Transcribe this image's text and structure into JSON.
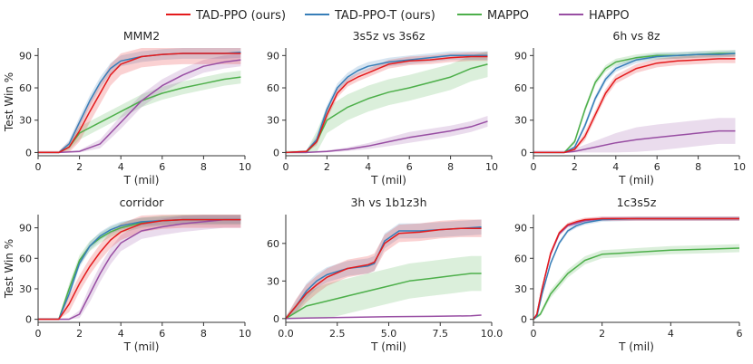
{
  "legend": [
    {
      "label": "TAD-PPO (ours)",
      "color": "#e41a1c"
    },
    {
      "label": "TAD-PPO-T (ours)",
      "color": "#377eb8"
    },
    {
      "label": "MAPPO",
      "color": "#4daf4a"
    },
    {
      "label": "HAPPO",
      "color": "#984ea3"
    }
  ],
  "chart_data": [
    {
      "type": "line",
      "title": "MMM2",
      "xlabel": "T (mil)",
      "ylabel": "Test Win %",
      "xlim": [
        0,
        10
      ],
      "ylim": [
        -3,
        97
      ],
      "xticks": [
        0,
        2,
        4,
        6,
        8,
        10
      ],
      "xtick_labels": [
        "0",
        "2",
        "4",
        "6",
        "8",
        "10"
      ],
      "yticks": [
        0,
        30,
        60,
        90
      ],
      "series": [
        {
          "name": "TAD-PPO (ours)",
          "x": [
            0,
            1,
            1.5,
            2,
            2.5,
            3,
            3.5,
            4,
            5,
            6,
            7,
            8,
            9,
            9.8
          ],
          "y": [
            0,
            0,
            5,
            20,
            38,
            55,
            72,
            82,
            89,
            91,
            92,
            92,
            92,
            92
          ],
          "band": 10
        },
        {
          "name": "TAD-PPO-T (ours)",
          "x": [
            0,
            1,
            1.5,
            2,
            2.5,
            3,
            3.5,
            4,
            5,
            6,
            7,
            8,
            9,
            9.8
          ],
          "y": [
            0,
            0,
            8,
            28,
            48,
            65,
            78,
            85,
            89,
            91,
            92,
            92,
            92,
            93
          ],
          "band": 5
        },
        {
          "name": "MAPPO",
          "x": [
            0,
            1,
            1.5,
            2,
            3,
            4,
            5,
            6,
            7,
            8,
            9,
            9.8
          ],
          "y": [
            0,
            0,
            5,
            18,
            28,
            38,
            48,
            55,
            60,
            64,
            68,
            70
          ],
          "band": 6
        },
        {
          "name": "HAPPO",
          "x": [
            0,
            1,
            2,
            3,
            4,
            5,
            6,
            7,
            8,
            9,
            9.8
          ],
          "y": [
            0,
            0,
            1,
            8,
            28,
            48,
            62,
            72,
            80,
            84,
            86
          ],
          "band": 6
        }
      ]
    },
    {
      "type": "line",
      "title": "3s5z vs 3s6z",
      "xlabel": "T (mil)",
      "ylabel": "",
      "xlim": [
        0,
        10
      ],
      "ylim": [
        -3,
        97
      ],
      "xticks": [
        0,
        2,
        4,
        6,
        8,
        10
      ],
      "xtick_labels": [
        "0",
        "2",
        "4",
        "6",
        "8",
        "10"
      ],
      "yticks": [
        0,
        30,
        60,
        90
      ],
      "series": [
        {
          "name": "TAD-PPO (ours)",
          "x": [
            0,
            1,
            1.5,
            2,
            2.5,
            3,
            3.5,
            4,
            5,
            6,
            7,
            8,
            9,
            9.8
          ],
          "y": [
            0,
            1,
            10,
            35,
            55,
            65,
            70,
            74,
            82,
            85,
            86,
            88,
            89,
            89
          ],
          "band": 4
        },
        {
          "name": "TAD-PPO-T (ours)",
          "x": [
            0,
            1,
            1.5,
            2,
            2.5,
            3,
            3.5,
            4,
            5,
            6,
            7,
            8,
            9,
            9.8
          ],
          "y": [
            0,
            1,
            12,
            40,
            60,
            70,
            76,
            80,
            84,
            86,
            88,
            90,
            90,
            90
          ],
          "band": 4
        },
        {
          "name": "MAPPO",
          "x": [
            0,
            1,
            1.5,
            2,
            3,
            4,
            5,
            6,
            7,
            8,
            9,
            9.8
          ],
          "y": [
            0,
            0,
            10,
            30,
            42,
            50,
            56,
            60,
            65,
            70,
            78,
            82
          ],
          "band": 12
        },
        {
          "name": "HAPPO",
          "x": [
            0,
            1,
            2,
            3,
            4,
            5,
            6,
            7,
            8,
            9,
            9.8
          ],
          "y": [
            0,
            0,
            1,
            3,
            6,
            10,
            14,
            17,
            20,
            24,
            29
          ],
          "band": 5
        }
      ]
    },
    {
      "type": "line",
      "title": "6h vs 8z",
      "xlabel": "T (mil)",
      "ylabel": "",
      "xlim": [
        0,
        10
      ],
      "ylim": [
        -3,
        97
      ],
      "xticks": [
        0,
        2,
        4,
        6,
        8,
        10
      ],
      "xtick_labels": [
        "0",
        "2",
        "4",
        "6",
        "8",
        "10"
      ],
      "yticks": [
        0,
        30,
        60,
        90
      ],
      "series": [
        {
          "name": "TAD-PPO (ours)",
          "x": [
            0,
            1.5,
            2,
            2.5,
            3,
            3.5,
            4,
            5,
            6,
            7,
            8,
            9,
            9.8
          ],
          "y": [
            0,
            0,
            3,
            15,
            35,
            55,
            68,
            78,
            83,
            85,
            86,
            87,
            87
          ],
          "band": 4
        },
        {
          "name": "TAD-PPO-T (ours)",
          "x": [
            0,
            1.5,
            2,
            2.5,
            3,
            3.5,
            4,
            5,
            6,
            7,
            8,
            9,
            9.8
          ],
          "y": [
            0,
            0,
            5,
            25,
            50,
            68,
            78,
            86,
            89,
            90,
            91,
            91,
            92
          ],
          "band": 3
        },
        {
          "name": "MAPPO",
          "x": [
            0,
            1.5,
            2,
            2.5,
            3,
            3.5,
            4,
            5,
            6,
            7,
            8,
            9,
            9.8
          ],
          "y": [
            0,
            0,
            10,
            40,
            65,
            78,
            84,
            88,
            90,
            90,
            91,
            92,
            92
          ],
          "band": 3
        },
        {
          "name": "HAPPO",
          "x": [
            0,
            1.5,
            2,
            3,
            4,
            5,
            6,
            7,
            8,
            9,
            9.8
          ],
          "y": [
            0,
            0,
            1,
            5,
            9,
            12,
            14,
            16,
            18,
            20,
            20
          ],
          "band": 12
        }
      ]
    },
    {
      "type": "line",
      "title": "corridor",
      "xlabel": "T (mil)",
      "ylabel": "Test Win %",
      "xlim": [
        0,
        10
      ],
      "ylim": [
        -3,
        103
      ],
      "xticks": [
        0,
        2,
        4,
        6,
        8,
        10
      ],
      "xtick_labels": [
        "0",
        "2",
        "4",
        "6",
        "8",
        "10"
      ],
      "yticks": [
        0,
        30,
        60,
        90
      ],
      "series": [
        {
          "name": "TAD-PPO (ours)",
          "x": [
            0,
            1,
            1.5,
            2,
            2.5,
            3,
            3.5,
            4,
            5,
            6,
            7,
            8,
            9,
            9.8
          ],
          "y": [
            0,
            0,
            15,
            35,
            52,
            66,
            78,
            86,
            94,
            97,
            98,
            98,
            98,
            98
          ],
          "band": 8
        },
        {
          "name": "TAD-PPO-T (ours)",
          "x": [
            0,
            1,
            1.5,
            2,
            2.5,
            3,
            3.5,
            4,
            5,
            6,
            7,
            8,
            9,
            9.8
          ],
          "y": [
            0,
            0,
            25,
            55,
            72,
            82,
            88,
            92,
            96,
            97,
            98,
            98,
            98,
            98
          ],
          "band": 4
        },
        {
          "name": "MAPPO",
          "x": [
            0,
            1,
            1.5,
            2,
            2.5,
            3,
            3.5,
            4,
            5,
            6,
            7,
            8,
            9,
            9.8
          ],
          "y": [
            0,
            0,
            30,
            58,
            72,
            80,
            86,
            90,
            95,
            97,
            98,
            98,
            98,
            98
          ],
          "band": 5
        },
        {
          "name": "HAPPO",
          "x": [
            0,
            1.5,
            2,
            2.5,
            3,
            3.5,
            4,
            5,
            6,
            7,
            8,
            9,
            9.8
          ],
          "y": [
            0,
            0,
            5,
            25,
            45,
            62,
            75,
            87,
            91,
            94,
            96,
            98,
            98
          ],
          "band": 8
        }
      ]
    },
    {
      "type": "line",
      "title": "3h vs 1b1z3h",
      "xlabel": "T (mil)",
      "ylabel": "",
      "xlim": [
        0,
        10
      ],
      "ylim": [
        -3,
        83
      ],
      "xticks": [
        0,
        2.5,
        5,
        7.5,
        10
      ],
      "xtick_labels": [
        "0.0",
        "2.5",
        "5.0",
        "7.5",
        "10.0"
      ],
      "yticks": [
        0,
        30,
        60
      ],
      "series": [
        {
          "name": "TAD-PPO (ours)",
          "x": [
            0,
            0.5,
            1,
            1.5,
            2,
            3,
            4,
            4.3,
            4.8,
            5.5,
            6.5,
            7.5,
            8.5,
            9.5
          ],
          "y": [
            0,
            10,
            20,
            27,
            33,
            40,
            43,
            45,
            60,
            68,
            69,
            71,
            72,
            72
          ],
          "band": 7
        },
        {
          "name": "TAD-PPO-T (ours)",
          "x": [
            0,
            0.5,
            1,
            1.5,
            2,
            3,
            4,
            4.3,
            4.8,
            5.5,
            6.5,
            7.5,
            8.5,
            9.5
          ],
          "y": [
            0,
            10,
            22,
            30,
            35,
            40,
            42,
            44,
            62,
            70,
            70,
            71,
            72,
            73
          ],
          "band": 6
        },
        {
          "name": "MAPPO",
          "x": [
            0,
            0.5,
            1,
            2,
            3,
            4,
            5,
            6,
            7,
            8,
            9,
            9.5
          ],
          "y": [
            0,
            5,
            10,
            14,
            18,
            22,
            26,
            30,
            32,
            34,
            36,
            36
          ],
          "band": 14
        },
        {
          "name": "HAPPO",
          "x": [
            0,
            1,
            3,
            5,
            7,
            9,
            9.5
          ],
          "y": [
            0,
            0.5,
            1,
            1.5,
            1.8,
            2.2,
            2.8
          ],
          "band": 1
        }
      ]
    },
    {
      "type": "line",
      "title": "1c3s5z",
      "xlabel": "T (mil)",
      "ylabel": "",
      "xlim": [
        0,
        6
      ],
      "ylim": [
        -3,
        103
      ],
      "xticks": [
        0,
        2,
        4,
        6
      ],
      "xtick_labels": [
        "0",
        "2",
        "4",
        "6"
      ],
      "yticks": [
        0,
        30,
        60,
        90
      ],
      "series": [
        {
          "name": "TAD-PPO (ours)",
          "x": [
            0,
            0.1,
            0.25,
            0.5,
            0.75,
            1,
            1.25,
            1.5,
            2,
            3,
            4,
            5,
            6
          ],
          "y": [
            0,
            5,
            30,
            65,
            85,
            93,
            96,
            98,
            99,
            99,
            99,
            99,
            99
          ],
          "band": 2
        },
        {
          "name": "TAD-PPO-T (ours)",
          "x": [
            0,
            0.1,
            0.25,
            0.5,
            0.75,
            1,
            1.25,
            1.5,
            2,
            3,
            4,
            5,
            6
          ],
          "y": [
            0,
            3,
            25,
            55,
            75,
            87,
            92,
            95,
            98,
            99,
            99,
            99,
            99
          ],
          "band": 2
        },
        {
          "name": "MAPPO",
          "x": [
            0,
            0.2,
            0.5,
            1,
            1.5,
            2,
            2.5,
            3,
            4,
            5,
            6
          ],
          "y": [
            0,
            5,
            25,
            45,
            58,
            64,
            65,
            66,
            68,
            69,
            70
          ],
          "band": 4
        },
        {
          "name": "HAPPO",
          "x": [
            0,
            0.1,
            0.25,
            0.5,
            0.75,
            1,
            1.5,
            2,
            3,
            4,
            5,
            6
          ],
          "y": [
            0,
            5,
            30,
            64,
            84,
            92,
            97,
            99,
            99,
            99,
            99,
            99
          ],
          "band": 2
        }
      ]
    }
  ]
}
